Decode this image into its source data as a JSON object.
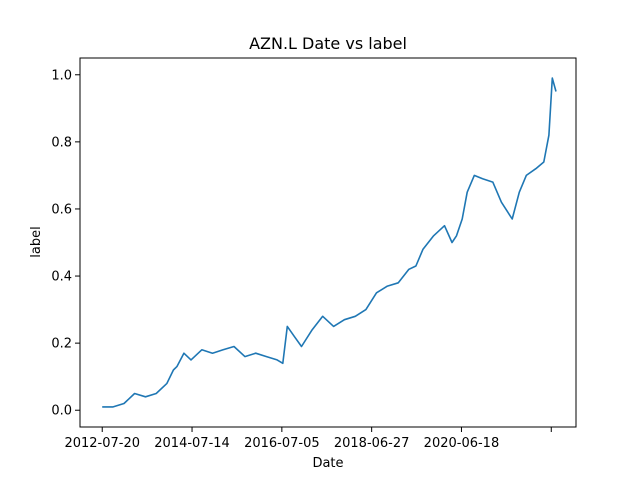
{
  "chart_data": {
    "type": "line",
    "title": "AZN.L Date vs label",
    "xlabel": "Date",
    "ylabel": "label",
    "x_ticks": [
      "2012-07-20",
      "2014-07-14",
      "2016-07-05",
      "2018-06-27",
      "2020-06-18",
      ""
    ],
    "x_range": [
      "2012-01-24",
      "2022-12-08"
    ],
    "ylim": [
      -0.05,
      1.05
    ],
    "y_ticks": [
      0.0,
      0.2,
      0.4,
      0.6,
      0.8,
      1.0
    ],
    "grid": false,
    "line_color": "#1f77b4",
    "series": [
      {
        "x": [
          "2012-07-20",
          "2012-10-15",
          "2013-01-10",
          "2013-04-05",
          "2013-07-01",
          "2013-09-25",
          "2013-12-20",
          "2014-02-10",
          "2014-03-10",
          "2014-05-05",
          "2014-07-01",
          "2014-09-25",
          "2014-12-20",
          "2015-03-15",
          "2015-06-10",
          "2015-09-05",
          "2015-12-01",
          "2016-02-25",
          "2016-05-20",
          "2016-07-05",
          "2016-08-10",
          "2016-10-05",
          "2016-12-01",
          "2017-02-25",
          "2017-05-20",
          "2017-08-15",
          "2017-11-10",
          "2018-02-05",
          "2018-05-01",
          "2018-07-25",
          "2018-10-20",
          "2019-01-15",
          "2019-04-10",
          "2019-06-05",
          "2019-08-01",
          "2019-10-25",
          "2020-01-20",
          "2020-03-20",
          "2020-04-25",
          "2020-06-10",
          "2020-07-20",
          "2020-09-15",
          "2020-11-20",
          "2021-02-10",
          "2021-04-20",
          "2021-07-15",
          "2021-09-10",
          "2021-11-05",
          "2022-01-20",
          "2022-03-25",
          "2022-05-05",
          "2022-06-01",
          "2022-07-01"
        ],
        "y": [
          0.01,
          0.01,
          0.02,
          0.05,
          0.04,
          0.05,
          0.08,
          0.12,
          0.13,
          0.17,
          0.15,
          0.18,
          0.17,
          0.18,
          0.19,
          0.16,
          0.17,
          0.16,
          0.15,
          0.14,
          0.25,
          0.22,
          0.19,
          0.24,
          0.28,
          0.25,
          0.27,
          0.28,
          0.3,
          0.35,
          0.37,
          0.38,
          0.42,
          0.43,
          0.48,
          0.52,
          0.55,
          0.5,
          0.52,
          0.57,
          0.65,
          0.7,
          0.69,
          0.68,
          0.62,
          0.57,
          0.65,
          0.7,
          0.72,
          0.74,
          0.82,
          0.99,
          0.95
        ]
      }
    ]
  }
}
